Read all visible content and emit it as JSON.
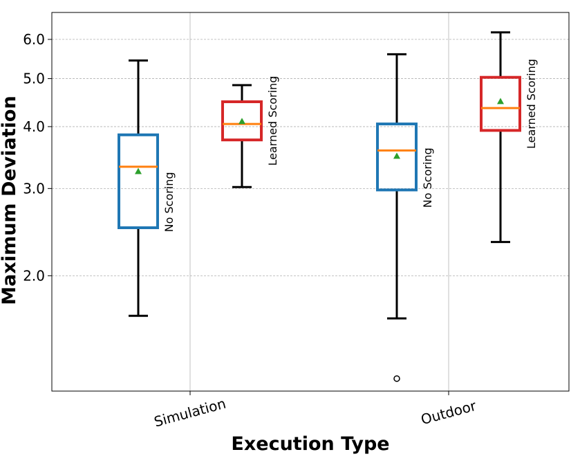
{
  "chart_data": {
    "type": "box",
    "xlabel": "Execution Type",
    "ylabel": "Maximum Deviation",
    "categories": [
      "Simulation",
      "Outdoor"
    ],
    "y_scale": "log",
    "ylim": [
      1.17,
      6.8
    ],
    "y_ticks": [
      2.0,
      3.0,
      4.0,
      5.0,
      6.0
    ],
    "y_tick_labels": [
      "2.0",
      "3.0",
      "4.0",
      "5.0",
      "6.0"
    ],
    "grid": {
      "y": "dashed",
      "x": "solid-at-categories"
    },
    "series": [
      {
        "name": "No Scoring",
        "color": "#1f77b4",
        "boxes": [
          {
            "category": "Simulation",
            "whisker_low": 1.66,
            "q1": 2.5,
            "median": 3.32,
            "q3": 3.85,
            "whisker_high": 5.44,
            "mean": 3.25,
            "outliers": []
          },
          {
            "category": "Outdoor",
            "whisker_low": 1.64,
            "q1": 2.98,
            "median": 3.58,
            "q3": 4.05,
            "whisker_high": 5.6,
            "mean": 3.49,
            "outliers": [
              1.24
            ]
          }
        ]
      },
      {
        "name": "Learned Scoring",
        "color": "#d62728",
        "boxes": [
          {
            "category": "Simulation",
            "whisker_low": 3.02,
            "q1": 3.76,
            "median": 4.05,
            "q3": 4.49,
            "whisker_high": 4.85,
            "mean": 4.1,
            "outliers": []
          },
          {
            "category": "Outdoor",
            "whisker_low": 2.34,
            "q1": 3.93,
            "median": 4.36,
            "q3": 5.03,
            "whisker_high": 6.2,
            "mean": 4.5,
            "outliers": []
          }
        ]
      }
    ],
    "median_color": "#ff7f0e",
    "mean_color": "#2ca02c"
  }
}
